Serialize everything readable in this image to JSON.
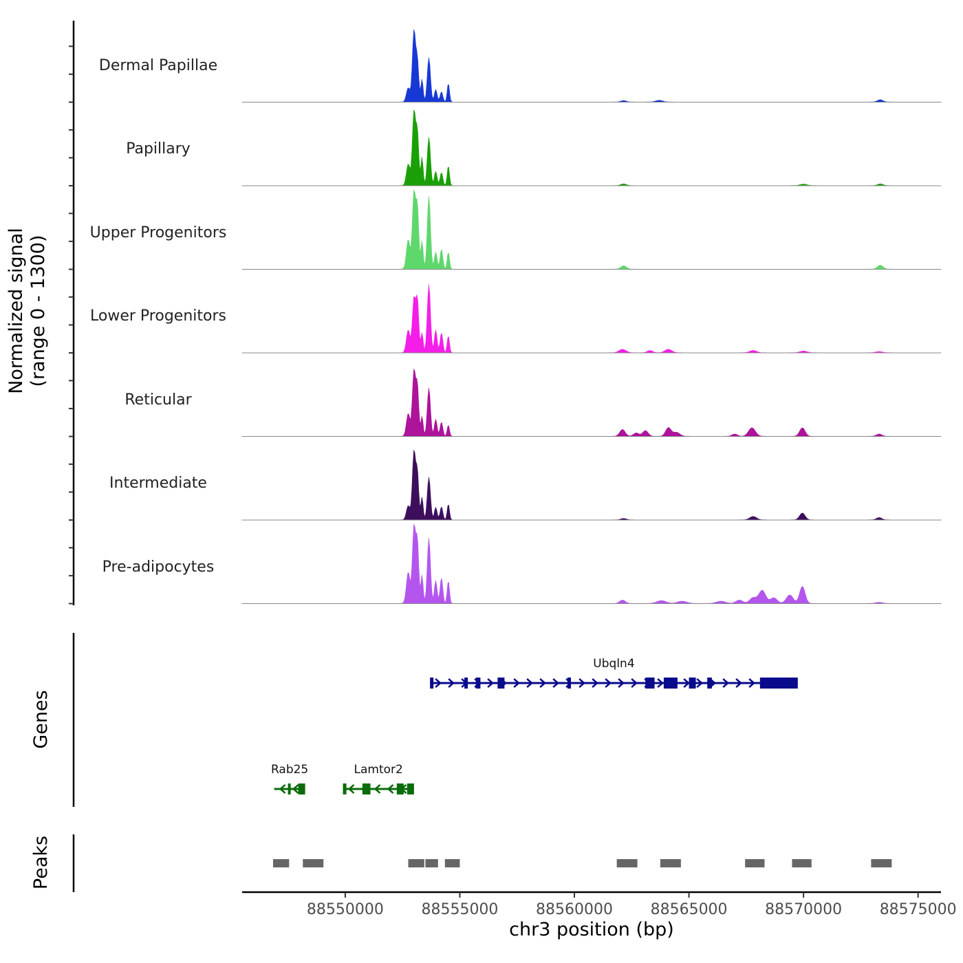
{
  "chart_data": {
    "type": "area",
    "title": "",
    "xlabel": "chr3 position (bp)",
    "ylabel_line1": "Normalized signal",
    "ylabel_line2": "(range 0 - 1300)",
    "y_range": [
      0,
      1300
    ],
    "x_range": [
      88545500,
      88576000
    ],
    "x_ticks": [
      88550000,
      88555000,
      88560000,
      88565000,
      88570000,
      88575000
    ],
    "x_tick_labels": [
      "88550000",
      "88555000",
      "88560000",
      "88565000",
      "88570000",
      "88575000"
    ],
    "tracks": [
      {
        "name": "Dermal Papillae",
        "color": "#1838d6",
        "peaks": [
          [
            88552750,
            250,
            80
          ],
          [
            88553000,
            1250,
            70
          ],
          [
            88553150,
            700,
            60
          ],
          [
            88553350,
            400,
            50
          ],
          [
            88553650,
            780,
            70
          ],
          [
            88553950,
            220,
            60
          ],
          [
            88554200,
            180,
            60
          ],
          [
            88554500,
            330,
            50
          ],
          [
            88562150,
            25,
            120
          ],
          [
            88563700,
            30,
            150
          ],
          [
            88573350,
            40,
            120
          ]
        ]
      },
      {
        "name": "Papillary",
        "color": "#1aa006",
        "peaks": [
          [
            88552750,
            380,
            80
          ],
          [
            88553000,
            1300,
            70
          ],
          [
            88553150,
            900,
            60
          ],
          [
            88553350,
            500,
            50
          ],
          [
            88553650,
            850,
            70
          ],
          [
            88553950,
            250,
            60
          ],
          [
            88554200,
            230,
            60
          ],
          [
            88554500,
            350,
            50
          ],
          [
            88562150,
            30,
            120
          ],
          [
            88570000,
            25,
            150
          ],
          [
            88573350,
            30,
            120
          ]
        ]
      },
      {
        "name": "Upper Progenitors",
        "color": "#5ed86c",
        "peaks": [
          [
            88552750,
            520,
            80
          ],
          [
            88553000,
            1350,
            70
          ],
          [
            88553150,
            1050,
            60
          ],
          [
            88553350,
            500,
            50
          ],
          [
            88553650,
            1280,
            70
          ],
          [
            88553950,
            300,
            60
          ],
          [
            88554200,
            350,
            60
          ],
          [
            88554500,
            300,
            50
          ],
          [
            88562150,
            60,
            120
          ],
          [
            88573350,
            70,
            120
          ]
        ]
      },
      {
        "name": "Lower Progenitors",
        "color": "#f41ee8",
        "peaks": [
          [
            88552750,
            400,
            80
          ],
          [
            88553000,
            950,
            70
          ],
          [
            88553150,
            900,
            60
          ],
          [
            88553350,
            350,
            50
          ],
          [
            88553650,
            1200,
            70
          ],
          [
            88553950,
            400,
            60
          ],
          [
            88554200,
            350,
            60
          ],
          [
            88554500,
            300,
            50
          ],
          [
            88562100,
            60,
            150
          ],
          [
            88563300,
            40,
            120
          ],
          [
            88564100,
            60,
            150
          ],
          [
            88567800,
            40,
            150
          ],
          [
            88570000,
            30,
            150
          ],
          [
            88573300,
            20,
            150
          ]
        ]
      },
      {
        "name": "Reticular",
        "color": "#ad139b",
        "peaks": [
          [
            88552750,
            400,
            80
          ],
          [
            88553000,
            1150,
            70
          ],
          [
            88553150,
            850,
            60
          ],
          [
            88553350,
            350,
            50
          ],
          [
            88553650,
            850,
            70
          ],
          [
            88553950,
            300,
            60
          ],
          [
            88554200,
            250,
            60
          ],
          [
            88554500,
            200,
            50
          ],
          [
            88562100,
            120,
            120
          ],
          [
            88562700,
            60,
            120
          ],
          [
            88563100,
            100,
            120
          ],
          [
            88564100,
            150,
            120
          ],
          [
            88564450,
            70,
            150
          ],
          [
            88567000,
            40,
            120
          ],
          [
            88567750,
            150,
            150
          ],
          [
            88569950,
            150,
            120
          ],
          [
            88573300,
            40,
            120
          ]
        ]
      },
      {
        "name": "Intermediate",
        "color": "#3d0e5c",
        "peaks": [
          [
            88552750,
            250,
            80
          ],
          [
            88553000,
            1200,
            70
          ],
          [
            88553150,
            800,
            60
          ],
          [
            88553350,
            400,
            50
          ],
          [
            88553650,
            750,
            70
          ],
          [
            88553950,
            220,
            60
          ],
          [
            88554200,
            230,
            60
          ],
          [
            88554500,
            280,
            50
          ],
          [
            88562150,
            25,
            120
          ],
          [
            88567800,
            60,
            150
          ],
          [
            88569950,
            120,
            120
          ],
          [
            88573300,
            40,
            120
          ]
        ]
      },
      {
        "name": "Pre-adipocytes",
        "color": "#b456ee",
        "peaks": [
          [
            88552750,
            550,
            80
          ],
          [
            88553000,
            1350,
            70
          ],
          [
            88553150,
            1050,
            60
          ],
          [
            88553350,
            500,
            50
          ],
          [
            88553650,
            1150,
            70
          ],
          [
            88553950,
            400,
            60
          ],
          [
            88554200,
            450,
            60
          ],
          [
            88554500,
            400,
            50
          ],
          [
            88562100,
            60,
            120
          ],
          [
            88563800,
            50,
            200
          ],
          [
            88564700,
            40,
            200
          ],
          [
            88566400,
            40,
            200
          ],
          [
            88567200,
            60,
            150
          ],
          [
            88567800,
            100,
            150
          ],
          [
            88568200,
            230,
            150
          ],
          [
            88568700,
            100,
            150
          ],
          [
            88569400,
            150,
            150
          ],
          [
            88569950,
            300,
            120
          ],
          [
            88573300,
            20,
            150
          ]
        ]
      }
    ],
    "genes_label": "Genes",
    "genes": [
      {
        "name": "Ubqln4",
        "color": "#0a0a8c",
        "strand": "+",
        "start": 88553700,
        "end": 88569750,
        "exons": [
          [
            88553700,
            88553850
          ],
          [
            88555200,
            88555350
          ],
          [
            88555700,
            88555900
          ],
          [
            88556650,
            88556950
          ],
          [
            88559700,
            88559850
          ],
          [
            88563100,
            88563500
          ],
          [
            88563900,
            88564500
          ],
          [
            88565000,
            88565300
          ],
          [
            88565800,
            88566000
          ],
          [
            88568100,
            88569750
          ]
        ]
      },
      {
        "name": "Rab25",
        "color": "#0a6b0a",
        "strand": "-",
        "start": 88546900,
        "end": 88548250,
        "exons": [
          [
            88547500,
            88547600
          ],
          [
            88547950,
            88548250
          ]
        ]
      },
      {
        "name": "Lamtor2",
        "color": "#0a6b0a",
        "strand": "-",
        "start": 88549900,
        "end": 88553000,
        "exons": [
          [
            88549900,
            88550050
          ],
          [
            88550750,
            88551100
          ],
          [
            88552250,
            88552550
          ],
          [
            88552700,
            88553000
          ]
        ]
      }
    ],
    "peaks_label": "Peaks",
    "peak_regions": [
      [
        88546850,
        88547550
      ],
      [
        88548150,
        88549050
      ],
      [
        88552750,
        88553450
      ],
      [
        88553500,
        88554050
      ],
      [
        88554350,
        88555000
      ],
      [
        88561850,
        88562750
      ],
      [
        88563750,
        88564650
      ],
      [
        88567450,
        88568300
      ],
      [
        88569500,
        88570350
      ],
      [
        88572950,
        88573850
      ]
    ]
  }
}
